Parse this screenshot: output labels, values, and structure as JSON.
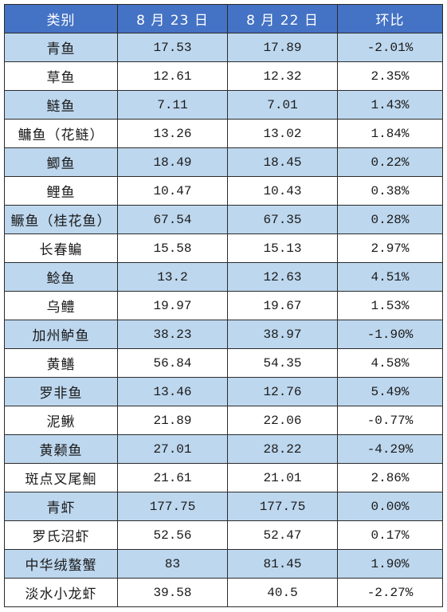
{
  "table": {
    "headers": [
      "类别",
      "8 月 23 日",
      "8 月 22 日",
      "环比"
    ],
    "header_color": "#4472c4",
    "stripe_color": "#bdd7ee",
    "rows": [
      {
        "name": "青鱼",
        "aug23": "17.53",
        "aug22": "17.89",
        "change": "-2.01%"
      },
      {
        "name": "草鱼",
        "aug23": "12.61",
        "aug22": "12.32",
        "change": "2.35%"
      },
      {
        "name": "鲢鱼",
        "aug23": "7.11",
        "aug22": "7.01",
        "change": "1.43%"
      },
      {
        "name": "鳙鱼（花鲢）",
        "aug23": "13.26",
        "aug22": "13.02",
        "change": "1.84%"
      },
      {
        "name": "鲫鱼",
        "aug23": "18.49",
        "aug22": "18.45",
        "change": "0.22%"
      },
      {
        "name": "鲤鱼",
        "aug23": "10.47",
        "aug22": "10.43",
        "change": "0.38%"
      },
      {
        "name": "鳜鱼（桂花鱼）",
        "aug23": "67.54",
        "aug22": "67.35",
        "change": "0.28%"
      },
      {
        "name": "长春鳊",
        "aug23": "15.58",
        "aug22": "15.13",
        "change": "2.97%"
      },
      {
        "name": "鲶鱼",
        "aug23": "13.2",
        "aug22": "12.63",
        "change": "4.51%"
      },
      {
        "name": "乌鳢",
        "aug23": "19.97",
        "aug22": "19.67",
        "change": "1.53%"
      },
      {
        "name": "加州鲈鱼",
        "aug23": "38.23",
        "aug22": "38.97",
        "change": "-1.90%"
      },
      {
        "name": "黄鳝",
        "aug23": "56.84",
        "aug22": "54.35",
        "change": "4.58%"
      },
      {
        "name": "罗非鱼",
        "aug23": "13.46",
        "aug22": "12.76",
        "change": "5.49%"
      },
      {
        "name": "泥鳅",
        "aug23": "21.89",
        "aug22": "22.06",
        "change": "-0.77%"
      },
      {
        "name": "黄颡鱼",
        "aug23": "27.01",
        "aug22": "28.22",
        "change": "-4.29%"
      },
      {
        "name": "斑点叉尾鮰",
        "aug23": "21.61",
        "aug22": "21.01",
        "change": "2.86%"
      },
      {
        "name": "青虾",
        "aug23": "177.75",
        "aug22": "177.75",
        "change": "0.00%"
      },
      {
        "name": "罗氏沼虾",
        "aug23": "52.56",
        "aug22": "52.47",
        "change": "0.17%"
      },
      {
        "name": "中华绒螯蟹",
        "aug23": "83",
        "aug22": "81.45",
        "change": "1.90%"
      },
      {
        "name": "淡水小龙虾",
        "aug23": "39.58",
        "aug22": "40.5",
        "change": "-2.27%"
      }
    ]
  }
}
